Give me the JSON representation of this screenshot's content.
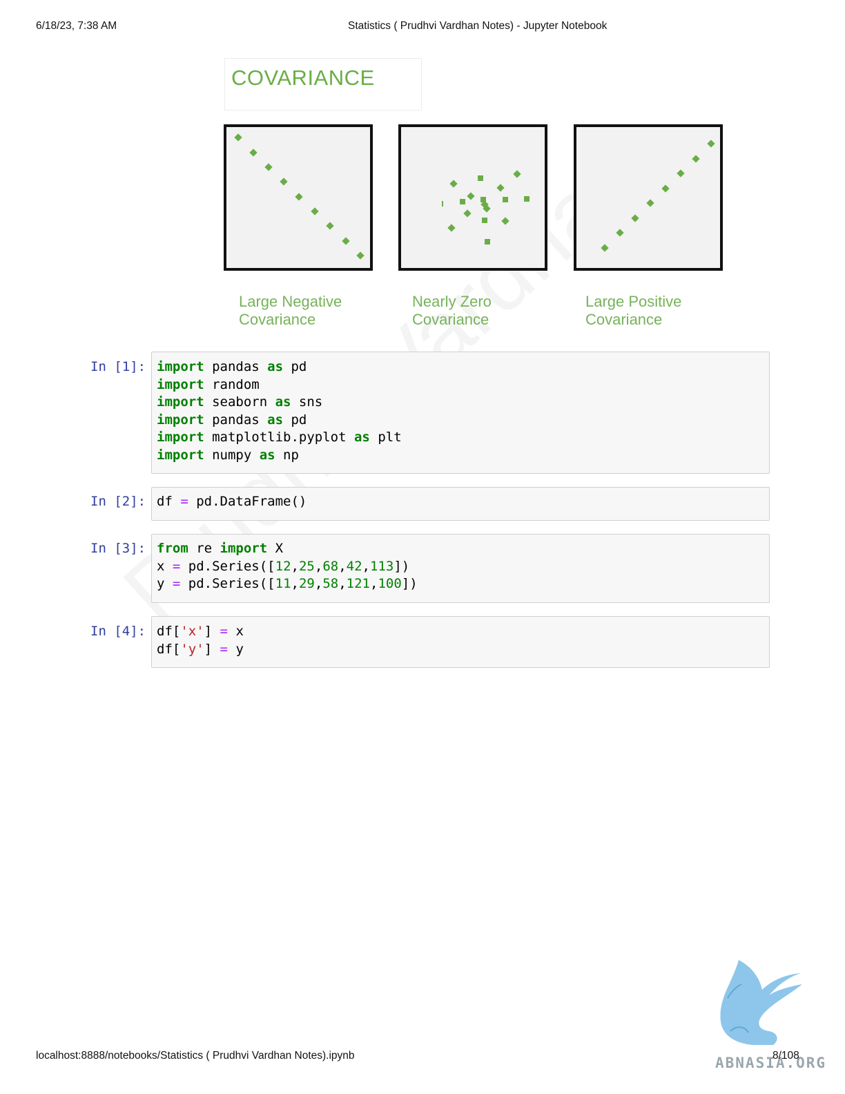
{
  "header": {
    "datetime": "6/18/23, 7:38 AM",
    "title": "Statistics ( Prudhvi Vardhan Notes) - Jupyter Notebook"
  },
  "figure": {
    "title": "COVARIANCE",
    "accent_color": "#6aad47",
    "labels": [
      "Large Negative\nCovariance",
      "Nearly Zero\nCovariance",
      "Large Positive\nCovariance"
    ]
  },
  "cells": [
    {
      "prompt": "In [1]:",
      "lines": [
        [
          [
            "kw",
            "import"
          ],
          [
            "t",
            " pandas "
          ],
          [
            "kw",
            "as"
          ],
          [
            "t",
            " pd"
          ]
        ],
        [
          [
            "kw",
            "import"
          ],
          [
            "t",
            " random"
          ]
        ],
        [
          [
            "kw",
            "import"
          ],
          [
            "t",
            " seaborn "
          ],
          [
            "kw",
            "as"
          ],
          [
            "t",
            " sns"
          ]
        ],
        [
          [
            "kw",
            "import"
          ],
          [
            "t",
            " pandas "
          ],
          [
            "kw",
            "as"
          ],
          [
            "t",
            " pd"
          ]
        ],
        [
          [
            "kw",
            "import"
          ],
          [
            "t",
            " matplotlib.pyplot "
          ],
          [
            "kw",
            "as"
          ],
          [
            "t",
            " plt"
          ]
        ],
        [
          [
            "kw",
            "import"
          ],
          [
            "t",
            " numpy "
          ],
          [
            "kw",
            "as"
          ],
          [
            "t",
            " np"
          ]
        ]
      ]
    },
    {
      "prompt": "In [2]:",
      "lines": [
        [
          [
            "t",
            "df "
          ],
          [
            "op",
            "="
          ],
          [
            "t",
            " pd.DataFrame()"
          ]
        ]
      ]
    },
    {
      "prompt": "In [3]:",
      "lines": [
        [
          [
            "kw",
            "from"
          ],
          [
            "t",
            " re "
          ],
          [
            "kw",
            "import"
          ],
          [
            "t",
            " X"
          ]
        ],
        [
          [
            "t",
            "x "
          ],
          [
            "op",
            "="
          ],
          [
            "t",
            " pd.Series(["
          ],
          [
            "num",
            "12"
          ],
          [
            "t",
            ","
          ],
          [
            "num",
            "25"
          ],
          [
            "t",
            ","
          ],
          [
            "num",
            "68"
          ],
          [
            "t",
            ","
          ],
          [
            "num",
            "42"
          ],
          [
            "t",
            ","
          ],
          [
            "num",
            "113"
          ],
          [
            "t",
            "])"
          ]
        ],
        [
          [
            "t",
            "y "
          ],
          [
            "op",
            "="
          ],
          [
            "t",
            " pd.Series(["
          ],
          [
            "num",
            "11"
          ],
          [
            "t",
            ","
          ],
          [
            "num",
            "29"
          ],
          [
            "t",
            ","
          ],
          [
            "num",
            "58"
          ],
          [
            "t",
            ","
          ],
          [
            "num",
            "121"
          ],
          [
            "t",
            ","
          ],
          [
            "num",
            "100"
          ],
          [
            "t",
            "])"
          ]
        ]
      ]
    },
    {
      "prompt": "In [4]:",
      "lines": [
        [
          [
            "t",
            "df["
          ],
          [
            "str",
            "'x'"
          ],
          [
            "t",
            "] "
          ],
          [
            "op",
            "="
          ],
          [
            "t",
            " x"
          ]
        ],
        [
          [
            "t",
            "df["
          ],
          [
            "str",
            "'y'"
          ],
          [
            "t",
            "] "
          ],
          [
            "op",
            "="
          ],
          [
            "t",
            " y"
          ]
        ]
      ]
    }
  ],
  "watermark": "Prudhvi Vardhan",
  "footer": {
    "url": "localhost:8888/notebooks/Statistics ( Prudhvi Vardhan Notes).ipynb",
    "page": "8/108"
  },
  "logo": {
    "text": "ABNASIA.ORG",
    "icon": "griffin-logo-icon"
  }
}
